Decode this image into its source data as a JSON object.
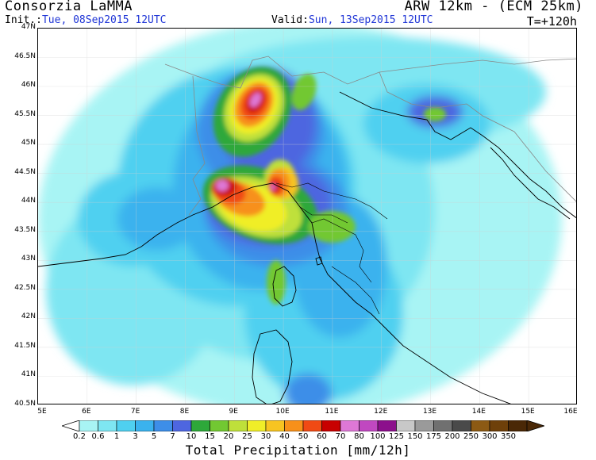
{
  "header": {
    "title": "Consorzia LaMMA",
    "model": "ARW 12km - (ECM 25km)",
    "init_label": "Init.:",
    "init_value": "Tue, 08Sep2015 12UTC",
    "valid_label": "Valid:",
    "valid_value": "Sun, 13Sep2015 12UTC",
    "step": "T=+120h"
  },
  "axes": {
    "lat_labels": [
      "47N",
      "46.5N",
      "46N",
      "45.5N",
      "45N",
      "44.5N",
      "44N",
      "43.5N",
      "43N",
      "42.5N",
      "42N",
      "41.5N",
      "41N",
      "40.5N"
    ],
    "lon_labels": [
      "5E",
      "6E",
      "7E",
      "8E",
      "9E",
      "10E",
      "11E",
      "12E",
      "13E",
      "14E",
      "15E",
      "16E"
    ]
  },
  "colorbar": {
    "title": "Total Precipitation [mm/12h]",
    "levels": [
      "0.2",
      "0.6",
      "1",
      "3",
      "5",
      "7",
      "10",
      "15",
      "20",
      "25",
      "30",
      "40",
      "50",
      "60",
      "70",
      "80",
      "100",
      "125",
      "150",
      "175",
      "200",
      "250",
      "300",
      "350"
    ],
    "colors": [
      "#a8f4f4",
      "#7ee6f2",
      "#4fd0f0",
      "#3ab2ee",
      "#3d8ee8",
      "#4e66e0",
      "#2ea83a",
      "#72c832",
      "#bfe03a",
      "#f0ee28",
      "#f7c421",
      "#f7901a",
      "#f04a14",
      "#c80000",
      "#de78d6",
      "#c048c0",
      "#8c108c",
      "#c8c8c8",
      "#9a9a9a",
      "#707070",
      "#4a4a4a",
      "#8c5a14",
      "#6e400a",
      "#4a2806"
    ]
  },
  "map_style": {
    "land_border_color": "#000000",
    "country_border_color": "#888888",
    "grid_line_color": "#d0d0d0"
  }
}
